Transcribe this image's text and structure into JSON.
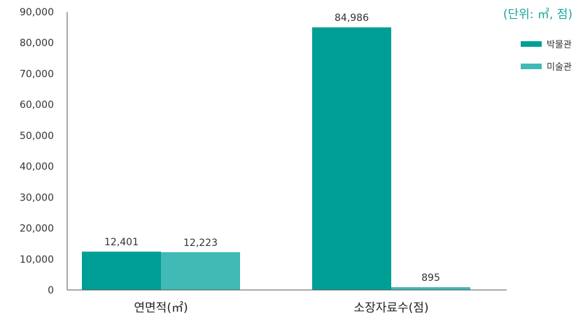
{
  "chart_data": {
    "type": "bar",
    "categories": [
      "연면적(㎡)",
      "소장자료수(점)"
    ],
    "series": [
      {
        "name": "박물관",
        "color": "#009f96",
        "values": [
          12401,
          84986
        ],
        "labels": [
          "12,401",
          "84,986"
        ]
      },
      {
        "name": "미술관",
        "color": "#41bab5",
        "values": [
          12223,
          895
        ],
        "labels": [
          "12,223",
          "895"
        ]
      }
    ],
    "unit_note": "(단위: ㎡, 점)",
    "ylim": [
      0,
      90000
    ],
    "yticks": [
      0,
      10000,
      20000,
      30000,
      40000,
      50000,
      60000,
      70000,
      80000,
      90000
    ],
    "ytick_labels": [
      "0",
      "10,000",
      "20,000",
      "30,000",
      "40,000",
      "50,000",
      "60,000",
      "70,000",
      "80,000",
      "90,000"
    ],
    "grid": false,
    "legend_position": "top-right"
  }
}
